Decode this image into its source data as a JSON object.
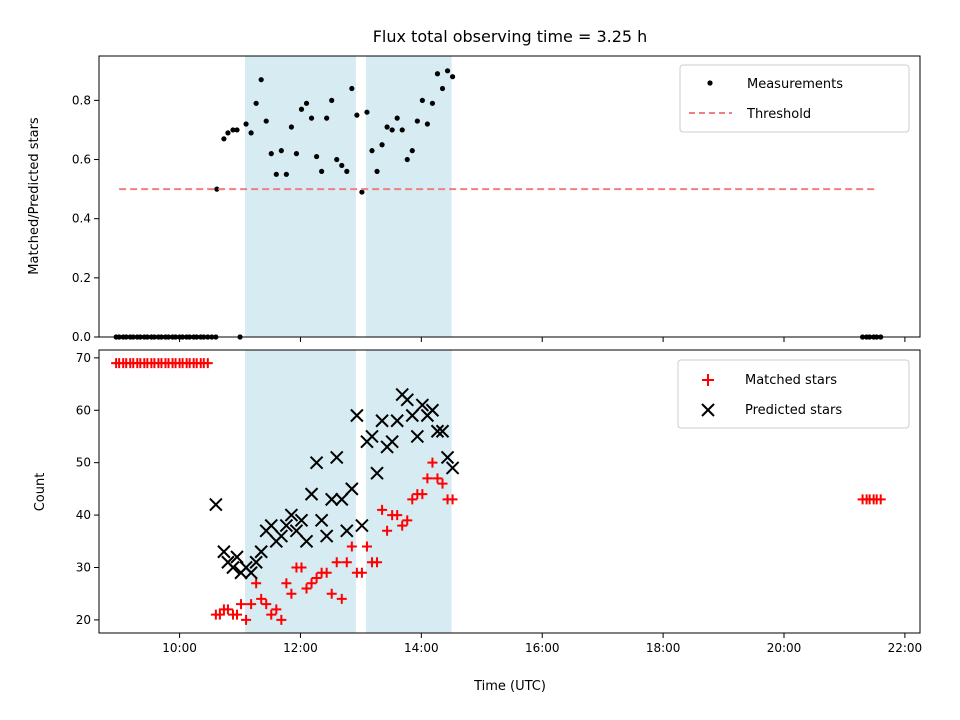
{
  "chart_data": [
    {
      "type": "scatter",
      "title": "Flux total observing time = 3.25 h",
      "xlabel": "",
      "ylabel": "Matched/Predicted stars",
      "xlim": [
        "08:40",
        "22:15"
      ],
      "ylim": [
        0,
        0.95
      ],
      "yticks": [
        "0.0",
        "0.2",
        "0.4",
        "0.6",
        "0.8"
      ],
      "shaded_intervals": [
        [
          "11:05",
          "12:55"
        ],
        [
          "13:05",
          "14:30"
        ]
      ],
      "legend_position": "top-right",
      "series": [
        {
          "name": "Measurements",
          "marker": "dot",
          "color": "#000000",
          "x": [
            "08:57",
            "09:00",
            "09:04",
            "09:07",
            "09:11",
            "09:14",
            "09:18",
            "09:21",
            "09:25",
            "09:28",
            "09:32",
            "09:35",
            "09:39",
            "09:42",
            "09:46",
            "09:49",
            "09:53",
            "09:56",
            "10:00",
            "10:03",
            "10:07",
            "10:10",
            "10:14",
            "10:17",
            "10:21",
            "10:24",
            "10:28",
            "10:32",
            "10:36",
            "11:00",
            "10:37",
            "10:44",
            "10:48",
            "10:53",
            "10:57",
            "11:06",
            "11:11",
            "11:16",
            "11:21",
            "11:26",
            "11:31",
            "11:36",
            "11:41",
            "11:46",
            "11:51",
            "11:56",
            "12:01",
            "12:06",
            "12:11",
            "12:16",
            "12:21",
            "12:26",
            "12:31",
            "12:36",
            "12:41",
            "12:46",
            "12:51",
            "12:56",
            "13:01",
            "13:06",
            "13:11",
            "13:16",
            "13:21",
            "13:26",
            "13:31",
            "13:36",
            "13:41",
            "13:46",
            "13:51",
            "13:56",
            "14:01",
            "14:06",
            "14:11",
            "14:16",
            "14:21",
            "14:26",
            "14:31",
            "21:18",
            "21:22",
            "21:25",
            "21:29",
            "21:32",
            "21:36"
          ],
          "y": [
            0,
            0,
            0,
            0,
            0,
            0,
            0,
            0,
            0,
            0,
            0,
            0,
            0,
            0,
            0,
            0,
            0,
            0,
            0,
            0,
            0,
            0,
            0,
            0,
            0,
            0,
            0,
            0,
            0,
            0,
            0.5,
            0.67,
            0.69,
            0.7,
            0.7,
            0.72,
            0.69,
            0.79,
            0.87,
            0.73,
            0.62,
            0.55,
            0.63,
            0.55,
            0.71,
            0.62,
            0.77,
            0.79,
            0.74,
            0.61,
            0.56,
            0.74,
            0.8,
            0.6,
            0.58,
            0.56,
            0.84,
            0.75,
            0.49,
            0.76,
            0.63,
            0.56,
            0.65,
            0.71,
            0.7,
            0.74,
            0.7,
            0.6,
            0.63,
            0.73,
            0.8,
            0.72,
            0.79,
            0.89,
            0.84,
            0.9,
            0.88,
            0,
            0,
            0,
            0,
            0,
            0
          ]
        },
        {
          "name": "Threshold",
          "marker": "dashed-line",
          "color": "#f08080",
          "x": [
            "09:00",
            "21:30"
          ],
          "y": [
            0.5,
            0.5
          ]
        }
      ]
    },
    {
      "type": "scatter",
      "title": "",
      "xlabel": "Time (UTC)",
      "ylabel": "Count",
      "xlim": [
        "08:40",
        "22:15"
      ],
      "ylim": [
        17.5,
        71.5
      ],
      "xticks": [
        "10:00",
        "12:00",
        "14:00",
        "16:00",
        "18:00",
        "20:00",
        "22:00"
      ],
      "yticks": [
        "20",
        "30",
        "40",
        "50",
        "60",
        "70"
      ],
      "shaded_intervals": [
        [
          "11:05",
          "12:55"
        ],
        [
          "13:05",
          "14:30"
        ]
      ],
      "legend_position": "top-right",
      "series": [
        {
          "name": "Matched stars",
          "marker": "plus",
          "color": "#ff0000",
          "x": [
            "08:57",
            "09:00",
            "09:04",
            "09:07",
            "09:11",
            "09:14",
            "09:18",
            "09:21",
            "09:25",
            "09:28",
            "09:32",
            "09:35",
            "09:39",
            "09:42",
            "09:46",
            "09:49",
            "09:53",
            "09:56",
            "10:00",
            "10:03",
            "10:07",
            "10:10",
            "10:14",
            "10:17",
            "10:21",
            "10:24",
            "10:28",
            "10:36",
            "10:40",
            "10:44",
            "10:48",
            "10:53",
            "10:57",
            "11:01",
            "11:06",
            "11:11",
            "11:16",
            "11:21",
            "11:26",
            "11:31",
            "11:36",
            "11:41",
            "11:46",
            "11:51",
            "11:56",
            "12:01",
            "12:06",
            "12:11",
            "12:16",
            "12:21",
            "12:26",
            "12:31",
            "12:36",
            "12:41",
            "12:46",
            "12:51",
            "12:56",
            "13:01",
            "13:06",
            "13:11",
            "13:16",
            "13:21",
            "13:26",
            "13:31",
            "13:36",
            "13:41",
            "13:46",
            "13:51",
            "13:56",
            "14:01",
            "14:06",
            "14:11",
            "14:16",
            "14:21",
            "14:26",
            "14:31",
            "21:18",
            "21:22",
            "21:25",
            "21:29",
            "21:32",
            "21:36"
          ],
          "y": [
            69,
            69,
            69,
            69,
            69,
            69,
            69,
            69,
            69,
            69,
            69,
            69,
            69,
            69,
            69,
            69,
            69,
            69,
            69,
            69,
            69,
            69,
            69,
            69,
            69,
            69,
            69,
            21,
            21,
            22,
            22,
            21,
            21,
            23,
            20,
            23,
            27,
            24,
            23,
            21,
            22,
            20,
            27,
            25,
            30,
            30,
            26,
            27,
            28,
            29,
            29,
            25,
            31,
            24,
            31,
            34,
            29,
            29,
            34,
            31,
            31,
            41,
            37,
            40,
            40,
            38,
            39,
            43,
            44,
            44,
            47,
            50,
            47,
            46,
            43,
            43,
            43,
            43,
            43,
            43,
            43,
            43
          ]
        },
        {
          "name": "Predicted stars",
          "marker": "x",
          "color": "#000000",
          "x": [
            "10:36",
            "10:44",
            "10:48",
            "10:53",
            "10:57",
            "11:01",
            "11:06",
            "11:11",
            "11:16",
            "11:21",
            "11:26",
            "11:31",
            "11:36",
            "11:41",
            "11:46",
            "11:51",
            "11:56",
            "12:01",
            "12:06",
            "12:11",
            "12:16",
            "12:21",
            "12:26",
            "12:31",
            "12:36",
            "12:41",
            "12:46",
            "12:51",
            "12:56",
            "13:01",
            "13:06",
            "13:11",
            "13:16",
            "13:21",
            "13:26",
            "13:31",
            "13:36",
            "13:41",
            "13:46",
            "13:51",
            "13:56",
            "14:01",
            "14:06",
            "14:11",
            "14:16",
            "14:21",
            "14:26",
            "14:31"
          ],
          "y": [
            42,
            33,
            31,
            30,
            32,
            29,
            30,
            29,
            31,
            33,
            37,
            38,
            35,
            36,
            38,
            40,
            37,
            39,
            35,
            44,
            50,
            39,
            36,
            43,
            51,
            43,
            37,
            45,
            59,
            38,
            54,
            55,
            48,
            58,
            53,
            54,
            58,
            63,
            62,
            59,
            55,
            61,
            59,
            60,
            56,
            56,
            51,
            49
          ]
        }
      ]
    }
  ]
}
